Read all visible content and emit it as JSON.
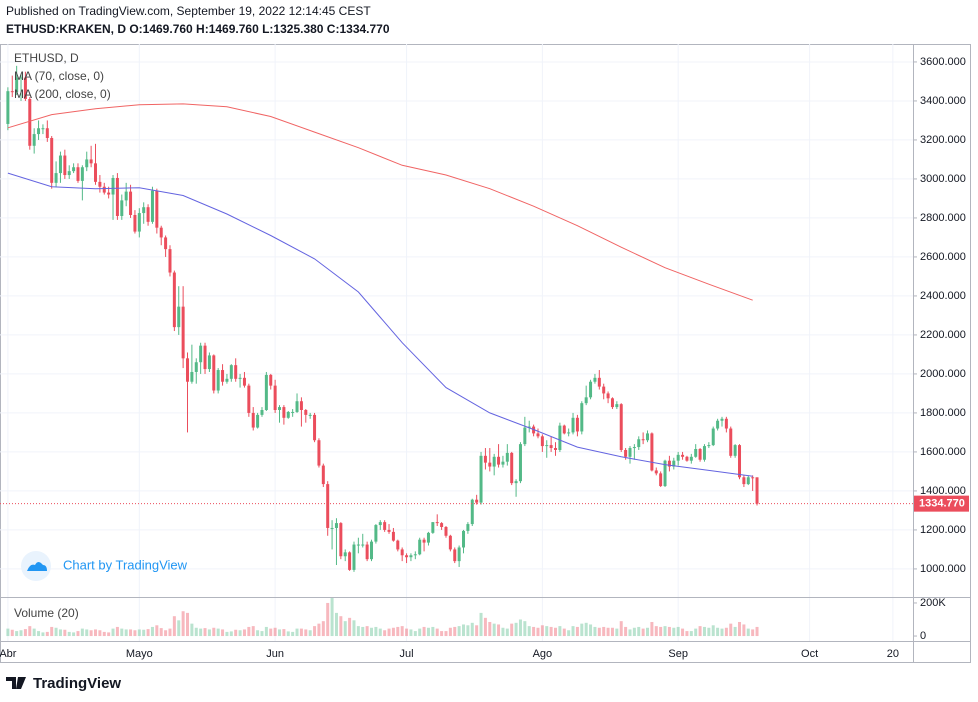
{
  "chart_data": {
    "type": "candlestick",
    "title": "Published on TradingView.com, September 19, 2022 12:14:45 CEST",
    "subtitle": "ETHUSD:KRAKEN, D O:1469.760 H:1469.760 L:1325.380 C:1334.770",
    "symbol_label": "ETHUSD, D",
    "watermark": "Chart by TradingView",
    "brand": "TradingView",
    "up_color": "#53b987",
    "down_color": "#eb4d5c",
    "xlim": [
      -1.8,
      206.6
    ],
    "xticks": [
      {
        "value": 0,
        "label": "Abr"
      },
      {
        "value": 30,
        "label": "Mayo"
      },
      {
        "value": 61,
        "label": "Jun"
      },
      {
        "value": 91,
        "label": "Jul"
      },
      {
        "value": 122,
        "label": "Ago"
      },
      {
        "value": 153,
        "label": "Sep"
      },
      {
        "value": 183,
        "label": "Oct"
      },
      {
        "value": 202,
        "label": "20"
      }
    ],
    "ylim": [
      856,
      3692
    ],
    "yticks": [
      {
        "value": 1000,
        "label": "1000.000"
      },
      {
        "value": 1200,
        "label": "1200.000"
      },
      {
        "value": 1400,
        "label": "1400.000"
      },
      {
        "value": 1600,
        "label": "1600.000"
      },
      {
        "value": 1800,
        "label": "1800.000"
      },
      {
        "value": 2000,
        "label": "2000.000"
      },
      {
        "value": 2200,
        "label": "2200.000"
      },
      {
        "value": 2400,
        "label": "2400.000"
      },
      {
        "value": 2600,
        "label": "2600.000"
      },
      {
        "value": 2800,
        "label": "2800.000"
      },
      {
        "value": 3000,
        "label": "3000.000"
      },
      {
        "value": 3200,
        "label": "3200.000"
      },
      {
        "value": 3400,
        "label": "3400.000"
      },
      {
        "value": 3600,
        "label": "3600.000"
      }
    ],
    "grid": true,
    "last_price": {
      "value": 1334.77,
      "label": "1334.770"
    },
    "ohlc": [
      [
        3282,
        3470,
        3250,
        3450
      ],
      [
        3450,
        3530,
        3420,
        3445
      ],
      [
        3445,
        3580,
        3430,
        3520
      ],
      [
        3520,
        3540,
        3400,
        3520
      ],
      [
        3520,
        3550,
        3400,
        3410
      ],
      [
        3410,
        3420,
        3150,
        3170
      ],
      [
        3170,
        3260,
        3130,
        3230
      ],
      [
        3230,
        3300,
        3200,
        3260
      ],
      [
        3260,
        3280,
        3230,
        3260
      ],
      [
        3260,
        3300,
        3190,
        3210
      ],
      [
        3210,
        3220,
        2950,
        2980
      ],
      [
        2980,
        3090,
        2960,
        3030
      ],
      [
        3030,
        3140,
        2980,
        3120
      ],
      [
        3120,
        3150,
        3000,
        3020
      ],
      [
        3020,
        3070,
        3000,
        3040
      ],
      [
        3040,
        3080,
        3030,
        3060
      ],
      [
        3060,
        3080,
        2980,
        2990
      ],
      [
        2990,
        3070,
        2890,
        3060
      ],
      [
        3060,
        3140,
        3040,
        3100
      ],
      [
        3100,
        3170,
        3060,
        3080
      ],
      [
        3080,
        3180,
        2970,
        2985
      ],
      [
        2985,
        3020,
        2930,
        2960
      ],
      [
        2960,
        2980,
        2920,
        2930
      ],
      [
        2930,
        2960,
        2900,
        2920
      ],
      [
        2920,
        3020,
        2790,
        3005
      ],
      [
        3005,
        3030,
        2790,
        2810
      ],
      [
        2810,
        2920,
        2790,
        2890
      ],
      [
        2890,
        2980,
        2860,
        2935
      ],
      [
        2935,
        2970,
        2800,
        2815
      ],
      [
        2815,
        2840,
        2720,
        2730
      ],
      [
        2730,
        2850,
        2700,
        2825
      ],
      [
        2825,
        2880,
        2770,
        2855
      ],
      [
        2855,
        2870,
        2760,
        2780
      ],
      [
        2780,
        2960,
        2770,
        2940
      ],
      [
        2940,
        2950,
        2720,
        2750
      ],
      [
        2750,
        2760,
        2660,
        2700
      ],
      [
        2700,
        2710,
        2600,
        2640
      ],
      [
        2640,
        2660,
        2500,
        2520
      ],
      [
        2520,
        2530,
        2220,
        2240
      ],
      [
        2240,
        2450,
        2200,
        2345
      ],
      [
        2345,
        2450,
        2030,
        2080
      ],
      [
        2080,
        2110,
        1700,
        1960
      ],
      [
        1960,
        2150,
        1950,
        2010
      ],
      [
        2010,
        2080,
        1950,
        2060
      ],
      [
        2060,
        2160,
        2000,
        2145
      ],
      [
        2145,
        2160,
        2000,
        2025
      ],
      [
        2025,
        2110,
        2010,
        2095
      ],
      [
        2095,
        2100,
        1900,
        1915
      ],
      [
        1915,
        2030,
        1900,
        2020
      ],
      [
        2020,
        2050,
        1940,
        1960
      ],
      [
        1960,
        2000,
        1950,
        1975
      ],
      [
        1975,
        2050,
        1960,
        2045
      ],
      [
        2045,
        2080,
        1960,
        1975
      ],
      [
        1975,
        2000,
        1930,
        1980
      ],
      [
        1980,
        2010,
        1930,
        1940
      ],
      [
        1940,
        1950,
        1780,
        1800
      ],
      [
        1800,
        1830,
        1710,
        1725
      ],
      [
        1725,
        1800,
        1720,
        1790
      ],
      [
        1790,
        1830,
        1780,
        1815
      ],
      [
        1815,
        2010,
        1810,
        1995
      ],
      [
        1995,
        2000,
        1920,
        1940
      ],
      [
        1940,
        1970,
        1800,
        1815
      ],
      [
        1815,
        1840,
        1750,
        1830
      ],
      [
        1830,
        1840,
        1740,
        1775
      ],
      [
        1775,
        1810,
        1770,
        1805
      ],
      [
        1805,
        1820,
        1780,
        1805
      ],
      [
        1805,
        1900,
        1800,
        1860
      ],
      [
        1860,
        1880,
        1730,
        1815
      ],
      [
        1815,
        1820,
        1750,
        1790
      ],
      [
        1790,
        1800,
        1770,
        1790
      ],
      [
        1790,
        1800,
        1650,
        1660
      ],
      [
        1660,
        1670,
        1520,
        1530
      ],
      [
        1530,
        1540,
        1420,
        1435
      ],
      [
        1435,
        1450,
        1170,
        1210
      ],
      [
        1210,
        1250,
        1100,
        1210
      ],
      [
        1210,
        1260,
        1020,
        1235
      ],
      [
        1235,
        1240,
        1050,
        1065
      ],
      [
        1065,
        1100,
        1040,
        1085
      ],
      [
        1085,
        1090,
        990,
        995
      ],
      [
        995,
        1140,
        985,
        1125
      ],
      [
        1125,
        1160,
        1080,
        1125
      ],
      [
        1125,
        1180,
        1110,
        1125
      ],
      [
        1125,
        1140,
        1040,
        1050
      ],
      [
        1050,
        1150,
        1040,
        1140
      ],
      [
        1140,
        1230,
        1130,
        1225
      ],
      [
        1225,
        1250,
        1200,
        1240
      ],
      [
        1240,
        1250,
        1190,
        1200
      ],
      [
        1200,
        1230,
        1180,
        1190
      ],
      [
        1190,
        1210,
        1140,
        1145
      ],
      [
        1145,
        1150,
        1090,
        1100
      ],
      [
        1100,
        1110,
        1040,
        1070
      ],
      [
        1070,
        1080,
        1030,
        1060
      ],
      [
        1060,
        1080,
        1040,
        1070
      ],
      [
        1070,
        1090,
        1050,
        1075
      ],
      [
        1075,
        1160,
        1070,
        1150
      ],
      [
        1150,
        1160,
        1090,
        1135
      ],
      [
        1135,
        1190,
        1120,
        1185
      ],
      [
        1185,
        1240,
        1180,
        1240
      ],
      [
        1240,
        1280,
        1220,
        1235
      ],
      [
        1235,
        1240,
        1200,
        1215
      ],
      [
        1215,
        1220,
        1160,
        1170
      ],
      [
        1170,
        1175,
        1090,
        1100
      ],
      [
        1100,
        1110,
        1030,
        1040
      ],
      [
        1040,
        1120,
        1010,
        1110
      ],
      [
        1110,
        1200,
        1080,
        1195
      ],
      [
        1195,
        1240,
        1180,
        1230
      ],
      [
        1230,
        1360,
        1220,
        1355
      ],
      [
        1355,
        1380,
        1330,
        1340
      ],
      [
        1340,
        1600,
        1330,
        1580
      ],
      [
        1580,
        1620,
        1510,
        1545
      ],
      [
        1545,
        1620,
        1500,
        1525
      ],
      [
        1525,
        1590,
        1480,
        1575
      ],
      [
        1575,
        1640,
        1520,
        1535
      ],
      [
        1535,
        1580,
        1520,
        1550
      ],
      [
        1550,
        1640,
        1530,
        1595
      ],
      [
        1595,
        1600,
        1430,
        1440
      ],
      [
        1440,
        1460,
        1370,
        1450
      ],
      [
        1450,
        1650,
        1440,
        1640
      ],
      [
        1640,
        1780,
        1630,
        1725
      ],
      [
        1725,
        1760,
        1700,
        1730
      ],
      [
        1730,
        1740,
        1680,
        1695
      ],
      [
        1695,
        1720,
        1670,
        1680
      ],
      [
        1680,
        1690,
        1600,
        1630
      ],
      [
        1630,
        1660,
        1570,
        1635
      ],
      [
        1635,
        1680,
        1600,
        1620
      ],
      [
        1620,
        1650,
        1580,
        1610
      ],
      [
        1610,
        1750,
        1600,
        1735
      ],
      [
        1735,
        1740,
        1690,
        1695
      ],
      [
        1695,
        1720,
        1680,
        1700
      ],
      [
        1700,
        1800,
        1690,
        1775
      ],
      [
        1775,
        1790,
        1680,
        1705
      ],
      [
        1705,
        1860,
        1690,
        1850
      ],
      [
        1850,
        1940,
        1840,
        1880
      ],
      [
        1880,
        1970,
        1870,
        1960
      ],
      [
        1960,
        2000,
        1950,
        1980
      ],
      [
        1980,
        2020,
        1920,
        1935
      ],
      [
        1935,
        1950,
        1870,
        1900
      ],
      [
        1900,
        1910,
        1850,
        1875
      ],
      [
        1875,
        1880,
        1820,
        1830
      ],
      [
        1830,
        1860,
        1820,
        1845
      ],
      [
        1845,
        1850,
        1600,
        1610
      ],
      [
        1610,
        1620,
        1560,
        1575
      ],
      [
        1575,
        1630,
        1540,
        1620
      ],
      [
        1620,
        1640,
        1560,
        1625
      ],
      [
        1625,
        1680,
        1610,
        1665
      ],
      [
        1665,
        1700,
        1640,
        1660
      ],
      [
        1660,
        1710,
        1650,
        1695
      ],
      [
        1695,
        1700,
        1500,
        1505
      ],
      [
        1505,
        1520,
        1480,
        1490
      ],
      [
        1490,
        1500,
        1420,
        1425
      ],
      [
        1425,
        1560,
        1420,
        1555
      ],
      [
        1555,
        1580,
        1500,
        1525
      ],
      [
        1525,
        1570,
        1510,
        1555
      ],
      [
        1555,
        1600,
        1530,
        1585
      ],
      [
        1585,
        1600,
        1560,
        1575
      ],
      [
        1575,
        1580,
        1550,
        1555
      ],
      [
        1555,
        1590,
        1540,
        1575
      ],
      [
        1575,
        1640,
        1570,
        1615
      ],
      [
        1615,
        1620,
        1550,
        1560
      ],
      [
        1560,
        1640,
        1550,
        1630
      ],
      [
        1630,
        1650,
        1620,
        1635
      ],
      [
        1635,
        1730,
        1630,
        1720
      ],
      [
        1720,
        1770,
        1710,
        1760
      ],
      [
        1760,
        1780,
        1730,
        1770
      ],
      [
        1770,
        1780,
        1700,
        1720
      ],
      [
        1720,
        1730,
        1570,
        1580
      ],
      [
        1580,
        1640,
        1570,
        1635
      ],
      [
        1635,
        1640,
        1460,
        1470
      ],
      [
        1470,
        1480,
        1420,
        1435
      ],
      [
        1435,
        1480,
        1430,
        1470
      ],
      [
        1470,
        1480,
        1400,
        1469.76
      ],
      [
        1469.76,
        1469.76,
        1325.38,
        1334.77
      ]
    ],
    "series": [
      {
        "name": "MA (70, close, 0)",
        "color": "#6464e0",
        "x": [
          0,
          10,
          20,
          30,
          40,
          50,
          60,
          70,
          80,
          90,
          100,
          110,
          120,
          130,
          140,
          150,
          160,
          170
        ],
        "values": [
          3030,
          2960,
          2950,
          2955,
          2915,
          2820,
          2710,
          2590,
          2420,
          2160,
          1930,
          1800,
          1715,
          1625,
          1575,
          1535,
          1505,
          1475
        ]
      },
      {
        "name": "MA (200, close, 0)",
        "color": "#f06464",
        "x": [
          0,
          10,
          20,
          30,
          40,
          50,
          60,
          70,
          80,
          90,
          100,
          110,
          120,
          130,
          140,
          150,
          160,
          170
        ],
        "values": [
          3262,
          3330,
          3360,
          3380,
          3385,
          3370,
          3320,
          3240,
          3160,
          3070,
          3020,
          2950,
          2860,
          2760,
          2650,
          2545,
          2460,
          2378
        ]
      }
    ],
    "volume": {
      "name": "Volume (20)",
      "ylim": [
        -30000,
        230000
      ],
      "yticks": [
        {
          "value": 200000,
          "label": "200K"
        },
        0
      ],
      "values": [
        45000,
        38000,
        30000,
        35000,
        42000,
        60000,
        45000,
        30000,
        22000,
        25000,
        55000,
        50000,
        40000,
        38000,
        25000,
        22000,
        30000,
        45000,
        40000,
        35000,
        40000,
        35000,
        25000,
        22000,
        45000,
        55000,
        45000,
        40000,
        40000,
        35000,
        40000,
        38000,
        42000,
        55000,
        65000,
        48000,
        35000,
        45000,
        120000,
        95000,
        150000,
        140000,
        75000,
        50000,
        45000,
        48000,
        40000,
        50000,
        45000,
        40000,
        25000,
        28000,
        38000,
        35000,
        40000,
        55000,
        60000,
        35000,
        30000,
        55000,
        45000,
        50000,
        40000,
        42000,
        28000,
        25000,
        45000,
        45000,
        40000,
        35000,
        60000,
        75000,
        90000,
        200000,
        230000,
        140000,
        120000,
        90000,
        110000,
        95000,
        60000,
        55000,
        60000,
        50000,
        55000,
        45000,
        35000,
        45000,
        50000,
        55000,
        60000,
        45000,
        40000,
        30000,
        45000,
        55000,
        50000,
        55000,
        45000,
        30000,
        30000,
        50000,
        55000,
        60000,
        70000,
        65000,
        80000,
        65000,
        140000,
        110000,
        85000,
        75000,
        70000,
        50000,
        45000,
        75000,
        80000,
        100000,
        90000,
        60000,
        55000,
        50000,
        65000,
        60000,
        55000,
        50000,
        60000,
        45000,
        35000,
        60000,
        55000,
        75000,
        80000,
        70000,
        55000,
        50000,
        55000,
        50000,
        50000,
        45000,
        90000,
        55000,
        40000,
        50000,
        55000,
        45000,
        50000,
        85000,
        60000,
        55000,
        60000,
        55000,
        50000,
        55000,
        45000,
        30000,
        30000,
        45000,
        60000,
        55000,
        50000,
        65000,
        50000,
        45000,
        50000,
        75000,
        55000,
        85000,
        70000,
        45000,
        40000,
        55000
      ]
    }
  }
}
